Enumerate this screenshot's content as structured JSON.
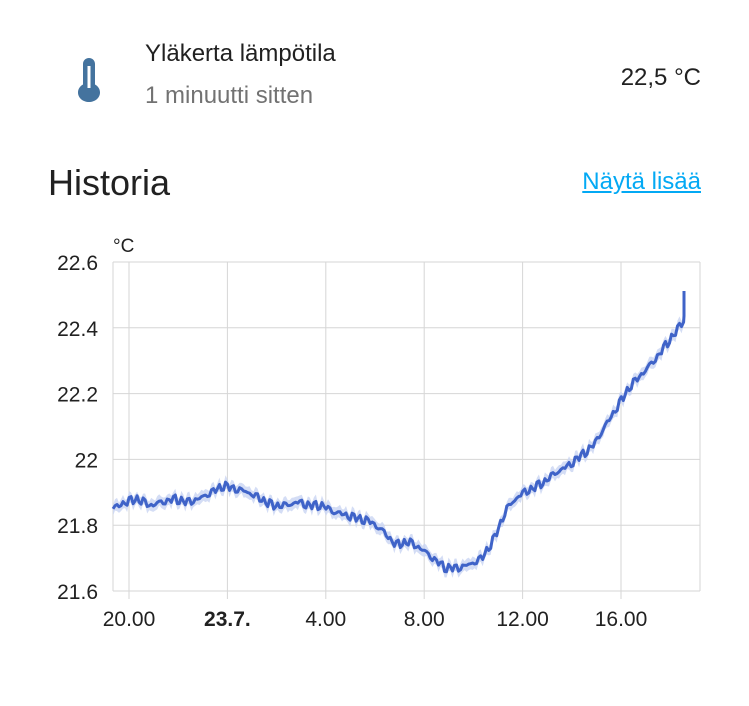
{
  "entity": {
    "name": "Yläkerta lämpötila",
    "last_changed": "1 minuutti sitten",
    "state": "22,5 °C",
    "icon": "thermometer-icon",
    "icon_color": "#44739e"
  },
  "history": {
    "title": "Historia",
    "show_more_label": "Näytä lisää"
  },
  "colors": {
    "line": "#3f63c8",
    "band": "#c9d4f2",
    "link": "#03a9f4",
    "grid": "#d6d6d6"
  },
  "chart_data": {
    "type": "line",
    "unit": "°C",
    "ylim": [
      21.6,
      22.6
    ],
    "y_ticks": [
      "22.6",
      "22.4",
      "22.2",
      "22",
      "21.8",
      "21.6"
    ],
    "x_ticks": [
      {
        "label": "20.00",
        "bold": false
      },
      {
        "label": "23.7.",
        "bold": true
      },
      {
        "label": "4.00",
        "bold": false
      },
      {
        "label": "8.00",
        "bold": false
      },
      {
        "label": "12.00",
        "bold": false
      },
      {
        "label": "16.00",
        "bold": false
      }
    ],
    "grid": true,
    "series": [
      {
        "hours_from_20": [
          0,
          0.5,
          1,
          1.5,
          2,
          2.5,
          3,
          3.5,
          4,
          4.5,
          5,
          5.5,
          6,
          6.5,
          7,
          7.5,
          8,
          8.5,
          9,
          9.5,
          10,
          10.5,
          11,
          11.5,
          12,
          12.5,
          13,
          13.5,
          14,
          14.5,
          15,
          15.5,
          16,
          16.5,
          17,
          17.5,
          18,
          18.5,
          19,
          19.5,
          20,
          20.5,
          21,
          21.5,
          22,
          22.5,
          23,
          23.5,
          24,
          24.5
        ],
        "values": [
          21.85,
          21.87,
          21.88,
          21.86,
          21.87,
          21.88,
          21.87,
          21.88,
          21.9,
          21.92,
          21.91,
          21.9,
          21.88,
          21.86,
          21.86,
          21.87,
          21.86,
          21.86,
          21.84,
          21.83,
          21.82,
          21.81,
          21.78,
          21.74,
          21.75,
          21.73,
          21.7,
          21.67,
          21.67,
          21.68,
          21.7,
          21.76,
          21.85,
          21.89,
          21.91,
          21.93,
          21.96,
          21.98,
          22.01,
          22.04,
          22.1,
          22.16,
          22.22,
          22.26,
          22.3,
          22.35,
          22.4,
          22.46,
          22.48,
          22.5
        ]
      }
    ]
  }
}
